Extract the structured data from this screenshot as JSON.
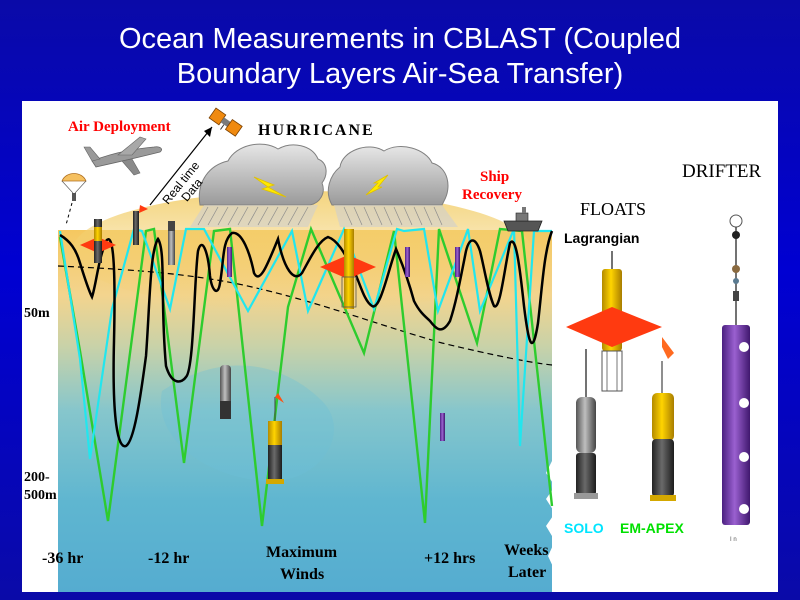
{
  "title": {
    "line1": "Ocean Measurements in CBLAST (Coupled",
    "line2": "Boundary Layers Air-Sea Transfer)"
  },
  "labels": {
    "air_deployment": "Air Deployment",
    "hurricane": "HURRICANE",
    "realtime_line1": "Real time",
    "realtime_line2": "Data",
    "ship_recovery_line1": "Ship",
    "ship_recovery_line2": "Recovery",
    "floats": "FLOATS",
    "lagrangian": "Lagrangian",
    "drifter": "DRIFTER",
    "solo": "SOLO",
    "em_apex": "EM-APEX",
    "depth_50m": "50m",
    "depth_deep_line1": "200-",
    "depth_deep_line2": "500m",
    "drifter_tag": "I n"
  },
  "time_axis": {
    "t1": "-36 hr",
    "t2": "-12 hr",
    "t3_line1": "Maximum",
    "t3_line2": "Winds",
    "t4": "+12 hrs",
    "t5_line1": "Weeks",
    "t5_line2": "Later"
  },
  "colors": {
    "slide_background": "#0000cc",
    "title_text": "#ffffff",
    "air_text": "#ff0000",
    "ship_text": "#ff0000",
    "solo_text": "#00e5ff",
    "em_apex_text": "#00e000",
    "trace_black": "#000000",
    "trace_cyan": "#22e6ee",
    "trace_green": "#2ecc2e",
    "drifter_body": "#7a3fb0"
  }
}
